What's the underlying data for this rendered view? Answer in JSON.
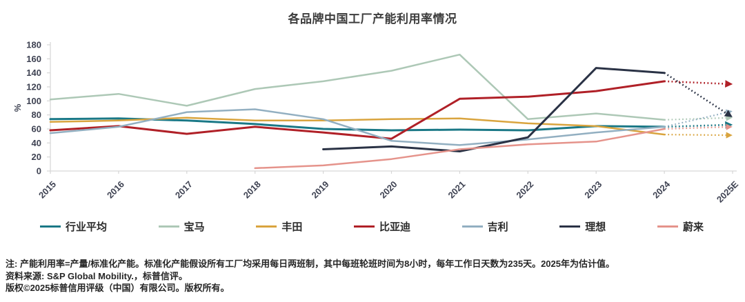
{
  "chart_data": {
    "type": "line",
    "title": "各品牌中国工厂产能利用率情况",
    "ylabel": "%",
    "ylim": [
      0,
      180
    ],
    "y_ticks": [
      0,
      20,
      40,
      60,
      80,
      100,
      120,
      140,
      160,
      180
    ],
    "x_categories": [
      "2015",
      "2016",
      "2017",
      "2018",
      "2019",
      "2020",
      "2021",
      "2022",
      "2023",
      "2024",
      "2025E"
    ],
    "legend_position": "bottom",
    "grid": false,
    "note_last_point": "2025E values are estimates, drawn as dotted lines with arrowheads",
    "series": [
      {
        "name": "行业平均",
        "color": "#1A7886",
        "width": 3,
        "values": [
          74,
          75,
          72,
          67,
          60,
          58,
          59,
          58,
          64,
          63,
          66
        ]
      },
      {
        "name": "宝马",
        "color": "#ADC8B6",
        "width": 2.5,
        "values": [
          102,
          110,
          93,
          117,
          128,
          143,
          166,
          74,
          82,
          73,
          76
        ]
      },
      {
        "name": "丰田",
        "color": "#D9A43E",
        "width": 2.5,
        "values": [
          70,
          72,
          76,
          72,
          72,
          74,
          75,
          68,
          64,
          52,
          51
        ]
      },
      {
        "name": "比亚迪",
        "color": "#B02027",
        "width": 3,
        "values": [
          58,
          64,
          53,
          63,
          55,
          46,
          103,
          106,
          114,
          128,
          124
        ]
      },
      {
        "name": "吉利",
        "color": "#92AFC1",
        "width": 2.5,
        "values": [
          54,
          63,
          84,
          88,
          74,
          43,
          37,
          45,
          55,
          63,
          85
        ]
      },
      {
        "name": "理想",
        "color": "#2A3245",
        "width": 3,
        "values": [
          null,
          null,
          null,
          null,
          31,
          35,
          28,
          48,
          147,
          140,
          78
        ]
      },
      {
        "name": "蔚来",
        "color": "#E5938B",
        "width": 2.5,
        "values": [
          null,
          null,
          null,
          4,
          8,
          17,
          31,
          38,
          42,
          60,
          63
        ]
      }
    ]
  },
  "footer": {
    "note": "注: 产能利用率=产量/标准化产能。标准化产能假设所有工厂均采用每日两班制，其中每班轮班时间为8小时，每年工作日天数为235天。2025年为估计值。",
    "source": "资料来源: S&P Global Mobility.，标普信评。",
    "copyright": "版权©2025标普信用评级（中国）有限公司。版权所有。"
  }
}
